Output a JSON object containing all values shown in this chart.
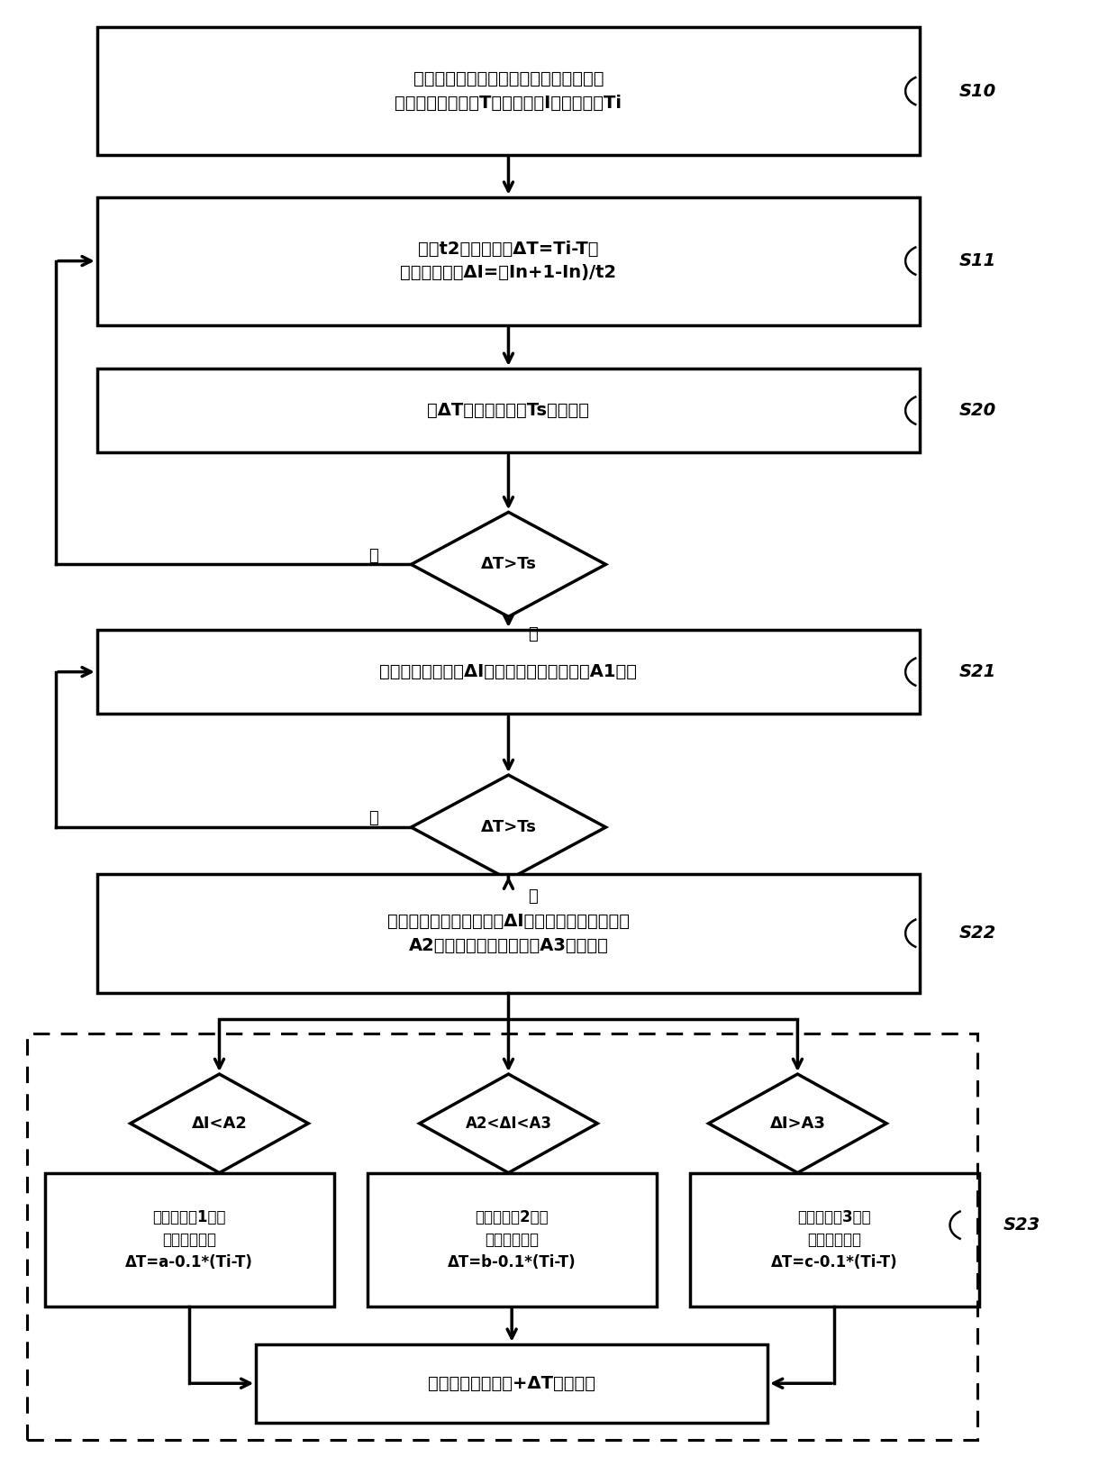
{
  "bg_color": "#ffffff",
  "line_color": "#000000",
  "text_color": "#000000",
  "box_fill": "#ffffff",
  "fig_width": 12.4,
  "fig_height": 16.17,
  "S10_text": "空调器在制冷模式下运行第一预设时间，\n获取室内盘管温度T、风机电流I、环境温度Ti",
  "S11_text": "每隔t2时间，计算ΔT=Ti-T，\n电流变化速率ΔI=（In+1-In)/t2",
  "S20_text": "将ΔT与温度预设值Ts进行比较",
  "D1_text": "ΔT>Ts",
  "S21_text": "满足制冷效果，将ΔI与第一电流变化预设值A1比较",
  "D2_text": "ΔT>Ts",
  "S22_text": "满足除湿度过量条件，将ΔI与第二电流变化预设值\nA2、第三电流变化预设值A3进行比较",
  "D3_text": "ΔI<A2",
  "D4_text": "A2<ΔI<A3",
  "D5_text": "ΔI>A3",
  "B1_text": "除湿度等级1级，\n温度修正值为\nΔT=a-0.1*(Ti-T)",
  "B2_text": "除湿度等级2级，\n温度修正值为\nΔT=b-0.1*(Ti-T)",
  "B3_text": "除湿度等级3级，\n温度修正值为\nΔT=c-0.1*(Ti-T)",
  "FINAL_text": "空调器以目标参数+ΔT温度运行",
  "yes_text": "是",
  "no_text": "否",
  "label_S10": "S10",
  "label_S11": "S11",
  "label_S20": "S20",
  "label_S21": "S21",
  "label_S22": "S22",
  "label_S23": "S23"
}
